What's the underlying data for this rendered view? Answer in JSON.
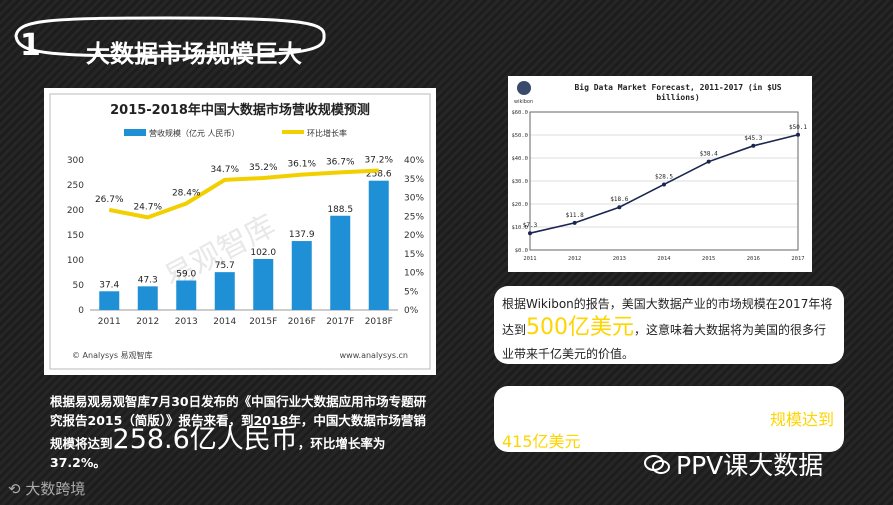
{
  "slide": {
    "number": "1",
    "title": "大数据市场规模巨大"
  },
  "left_chart": {
    "title": "2015-2018年中国大数据市场营收规模预测",
    "legend_bar": "营收规模（亿元 人民币）",
    "legend_line": "环比增长率",
    "watermark": "易观智库",
    "source_left": "© Analysys 易观智库",
    "source_right": "www.analysys.cn",
    "bar_color": "#1f8fd6",
    "line_color": "#f2d000"
  },
  "right_chart": {
    "title_line1": "Big Data Market Forecast, 2011-2017 (in $US",
    "title_line2": "billions)",
    "logo": "wikibon"
  },
  "note1": {
    "text_a": "根据Wikibon的报告，美国大数据产业的市场规模在2017年将达到",
    "big": "500亿美元",
    "text_b": "，这意味着大数据将为美国的很多行业带来千亿美元的价值。"
  },
  "note2": {
    "text_a": "规模达到",
    "text_b": "415亿美元"
  },
  "bottom": {
    "text_a": "根据易观易观智库7月30日发布的《中国行业大数据应用市场专题研究报告2015（简版）》报告来看，到2018年，中国大数据市场营销规模将达到",
    "big": "258.6亿人民币",
    "text_b": "，环比增长率为37.2%。"
  },
  "footer": {
    "logo_text": "大数跨境",
    "account": "PPV课大数据"
  },
  "chart_data": [
    {
      "type": "bar",
      "title": "2015-2018年中国大数据市场营收规模预测",
      "categories": [
        "2011",
        "2012",
        "2013",
        "2014",
        "2015F",
        "2016F",
        "2017F",
        "2018F"
      ],
      "series": [
        {
          "name": "营收规模（亿元 人民币）",
          "type": "bar",
          "axis": "left",
          "values": [
            37.4,
            47.3,
            59.0,
            75.7,
            102.0,
            137.9,
            188.5,
            258.6
          ],
          "labels": [
            "37.4",
            "47.3",
            "59.0",
            "75.7",
            "102.0",
            "137.9",
            "188.5",
            "258.6"
          ]
        },
        {
          "name": "环比增长率",
          "type": "line",
          "axis": "right",
          "values": [
            26.7,
            24.7,
            28.4,
            34.7,
            35.2,
            36.1,
            36.7,
            37.2
          ],
          "labels": [
            "26.7%",
            "24.7%",
            "28.4%",
            "34.7%",
            "35.2%",
            "36.1%",
            "36.7%",
            "37.2%"
          ]
        }
      ],
      "ylim": [
        0,
        300
      ],
      "y_ticks": [
        "0",
        "50",
        "100",
        "150",
        "200",
        "250",
        "300"
      ],
      "y2lim": [
        0,
        40
      ],
      "y2_ticks": [
        "0%",
        "5%",
        "10%",
        "15%",
        "20%",
        "25%",
        "30%",
        "35%",
        "40%"
      ],
      "legend": "top"
    },
    {
      "type": "line",
      "title": "Big Data Market Forecast, 2011-2017 (in $US billions)",
      "x": [
        "2011",
        "2012",
        "2013",
        "2014",
        "2015",
        "2016",
        "2017"
      ],
      "series": [
        {
          "values": [
            7.3,
            11.8,
            18.6,
            28.5,
            38.4,
            45.3,
            50.1
          ],
          "labels": [
            "$7.3",
            "$11.8",
            "$18.6",
            "$28.5",
            "$38.4",
            "$45.3",
            "$50.1"
          ]
        }
      ],
      "ylim": [
        0,
        60
      ],
      "y_ticks": [
        "$0.0",
        "$10.0",
        "$20.0",
        "$30.0",
        "$40.0",
        "$50.0",
        "$60.0"
      ],
      "grid": true
    }
  ]
}
